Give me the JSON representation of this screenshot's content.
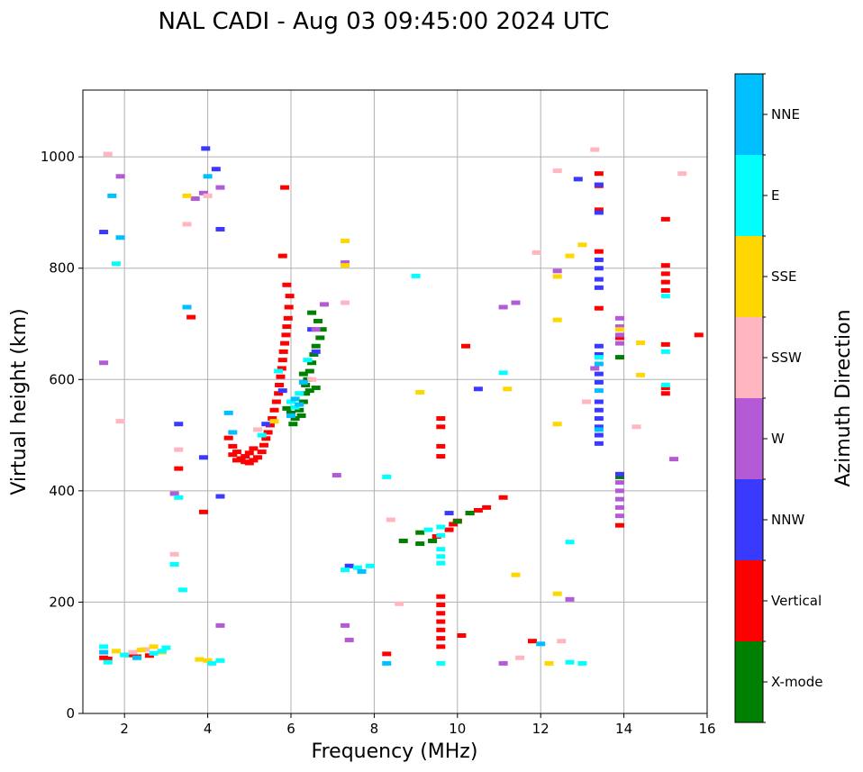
{
  "chart_data": {
    "type": "scatter",
    "title": "NAL CADI - Aug 03 09:45:00 2024 UTC",
    "xlabel": "Frequency (MHz)",
    "ylabel": "Virtual height (km)",
    "xlim": [
      1,
      16
    ],
    "ylim": [
      0,
      1120
    ],
    "xticks": [
      2,
      4,
      6,
      8,
      10,
      12,
      14,
      16
    ],
    "yticks": [
      0,
      200,
      400,
      600,
      800,
      1000
    ],
    "grid": true,
    "colorbar": {
      "title": "Azimuth Direction",
      "labels": [
        "X-mode",
        "Vertical",
        "NNW",
        "W",
        "SSW",
        "SSE",
        "E",
        "NNE"
      ],
      "colors": [
        "#008000",
        "#ff0000",
        "#3a3aff",
        "#b45ad6",
        "#ffb6c1",
        "#ffd700",
        "#00ffff",
        "#00bfff"
      ]
    },
    "series": [
      {
        "name": "Vertical",
        "color": "#ff0000",
        "points": [
          [
            1.5,
            100
          ],
          [
            1.6,
            98
          ],
          [
            2.1,
            105
          ],
          [
            2.3,
            102
          ],
          [
            2.6,
            104
          ],
          [
            3.6,
            712
          ],
          [
            3.3,
            440
          ],
          [
            3.9,
            362
          ],
          [
            4.5,
            495
          ],
          [
            4.6,
            480
          ],
          [
            4.7,
            470
          ],
          [
            4.8,
            458
          ],
          [
            4.9,
            452
          ],
          [
            5.0,
            450
          ],
          [
            5.1,
            455
          ],
          [
            5.2,
            460
          ],
          [
            5.3,
            470
          ],
          [
            5.35,
            482
          ],
          [
            5.4,
            494
          ],
          [
            5.45,
            505
          ],
          [
            5.5,
            518
          ],
          [
            5.55,
            530
          ],
          [
            5.6,
            545
          ],
          [
            5.65,
            560
          ],
          [
            5.7,
            575
          ],
          [
            5.72,
            590
          ],
          [
            5.75,
            605
          ],
          [
            5.78,
            620
          ],
          [
            5.8,
            635
          ],
          [
            5.82,
            650
          ],
          [
            5.85,
            665
          ],
          [
            5.88,
            680
          ],
          [
            5.9,
            695
          ],
          [
            5.93,
            710
          ],
          [
            5.95,
            730
          ],
          [
            5.97,
            750
          ],
          [
            5.9,
            770
          ],
          [
            5.8,
            822
          ],
          [
            5.85,
            945
          ],
          [
            4.6,
            465
          ],
          [
            4.7,
            455
          ],
          [
            4.9,
            462
          ],
          [
            5.0,
            468
          ],
          [
            5.1,
            476
          ],
          [
            9.6,
            120
          ],
          [
            9.6,
            135
          ],
          [
            9.6,
            150
          ],
          [
            9.6,
            165
          ],
          [
            9.6,
            180
          ],
          [
            9.6,
            195
          ],
          [
            9.6,
            210
          ],
          [
            9.6,
            462
          ],
          [
            9.6,
            480
          ],
          [
            9.6,
            515
          ],
          [
            9.6,
            530
          ],
          [
            9.5,
            318
          ],
          [
            9.8,
            330
          ],
          [
            9.9,
            340
          ],
          [
            10.0,
            346
          ],
          [
            10.3,
            360
          ],
          [
            10.5,
            365
          ],
          [
            10.7,
            370
          ],
          [
            10.2,
            660
          ],
          [
            10.1,
            140
          ],
          [
            11.1,
            388
          ],
          [
            11.8,
            130
          ],
          [
            13.4,
            970
          ],
          [
            13.4,
            948
          ],
          [
            13.4,
            905
          ],
          [
            13.4,
            830
          ],
          [
            13.4,
            728
          ],
          [
            13.9,
            675
          ],
          [
            13.9,
            338
          ],
          [
            15.0,
            888
          ],
          [
            15.0,
            805
          ],
          [
            15.0,
            790
          ],
          [
            15.0,
            775
          ],
          [
            15.0,
            760
          ],
          [
            15.0,
            663
          ],
          [
            15.0,
            585
          ],
          [
            15.0,
            575
          ],
          [
            15.8,
            680
          ],
          [
            8.3,
            107
          ]
        ]
      },
      {
        "name": "X-mode",
        "color": "#008000",
        "points": [
          [
            5.9,
            548
          ],
          [
            6.0,
            540
          ],
          [
            6.1,
            530
          ],
          [
            6.05,
            520
          ],
          [
            6.2,
            545
          ],
          [
            6.3,
            560
          ],
          [
            6.35,
            575
          ],
          [
            6.4,
            600
          ],
          [
            6.45,
            615
          ],
          [
            6.5,
            630
          ],
          [
            6.55,
            645
          ],
          [
            6.6,
            660
          ],
          [
            6.7,
            675
          ],
          [
            6.75,
            690
          ],
          [
            6.65,
            705
          ],
          [
            6.5,
            720
          ],
          [
            6.35,
            590
          ],
          [
            6.3,
            610
          ],
          [
            6.45,
            580
          ],
          [
            6.6,
            585
          ],
          [
            6.25,
            535
          ],
          [
            8.7,
            310
          ],
          [
            9.1,
            305
          ],
          [
            9.1,
            325
          ],
          [
            9.4,
            310
          ],
          [
            10.0,
            345
          ],
          [
            10.3,
            360
          ],
          [
            13.9,
            425
          ],
          [
            13.9,
            640
          ]
        ]
      },
      {
        "name": "NNW",
        "color": "#3a3aff",
        "points": [
          [
            1.5,
            865
          ],
          [
            3.3,
            520
          ],
          [
            3.9,
            460
          ],
          [
            3.95,
            1015
          ],
          [
            4.3,
            870
          ],
          [
            4.3,
            390
          ],
          [
            4.2,
            978
          ],
          [
            5.4,
            520
          ],
          [
            5.8,
            580
          ],
          [
            6.5,
            690
          ],
          [
            6.6,
            650
          ],
          [
            7.4,
            265
          ],
          [
            9.8,
            360
          ],
          [
            10.5,
            583
          ],
          [
            12.9,
            960
          ],
          [
            13.4,
            950
          ],
          [
            13.4,
            900
          ],
          [
            13.4,
            815
          ],
          [
            13.4,
            800
          ],
          [
            13.4,
            780
          ],
          [
            13.4,
            765
          ],
          [
            13.4,
            660
          ],
          [
            13.4,
            645
          ],
          [
            13.4,
            610
          ],
          [
            13.4,
            595
          ],
          [
            13.4,
            560
          ],
          [
            13.4,
            545
          ],
          [
            13.4,
            530
          ],
          [
            13.4,
            515
          ],
          [
            13.4,
            500
          ],
          [
            13.4,
            485
          ],
          [
            13.9,
            430
          ]
        ]
      },
      {
        "name": "W",
        "color": "#b45ad6",
        "points": [
          [
            1.5,
            630
          ],
          [
            1.9,
            965
          ],
          [
            3.2,
            395
          ],
          [
            3.7,
            925
          ],
          [
            3.9,
            935
          ],
          [
            4.3,
            158
          ],
          [
            4.3,
            945
          ],
          [
            6.6,
            690
          ],
          [
            6.8,
            735
          ],
          [
            7.3,
            810
          ],
          [
            7.3,
            158
          ],
          [
            7.4,
            132
          ],
          [
            7.1,
            428
          ],
          [
            11.1,
            730
          ],
          [
            11.4,
            738
          ],
          [
            11.1,
            90
          ],
          [
            12.4,
            795
          ],
          [
            12.7,
            205
          ],
          [
            13.3,
            620
          ],
          [
            13.9,
            710
          ],
          [
            13.9,
            695
          ],
          [
            13.9,
            680
          ],
          [
            13.9,
            665
          ],
          [
            13.9,
            415
          ],
          [
            13.9,
            400
          ],
          [
            13.9,
            385
          ],
          [
            13.9,
            370
          ],
          [
            13.9,
            355
          ],
          [
            15.2,
            457
          ]
        ]
      },
      {
        "name": "SSW",
        "color": "#ffb6c1",
        "points": [
          [
            1.6,
            1005
          ],
          [
            1.9,
            525
          ],
          [
            2.2,
            110
          ],
          [
            2.5,
            115
          ],
          [
            3.2,
            286
          ],
          [
            3.3,
            474
          ],
          [
            3.5,
            879
          ],
          [
            4.0,
            930
          ],
          [
            5.2,
            510
          ],
          [
            6.5,
            600
          ],
          [
            7.3,
            738
          ],
          [
            8.4,
            348
          ],
          [
            8.6,
            197
          ],
          [
            11.5,
            100
          ],
          [
            11.9,
            828
          ],
          [
            12.4,
            975
          ],
          [
            12.5,
            130
          ],
          [
            13.1,
            560
          ],
          [
            13.3,
            1013
          ],
          [
            14.3,
            515
          ],
          [
            15.4,
            970
          ]
        ]
      },
      {
        "name": "SSE",
        "color": "#ffd700",
        "points": [
          [
            1.8,
            112
          ],
          [
            2.4,
            114
          ],
          [
            2.7,
            120
          ],
          [
            2.9,
            110
          ],
          [
            3.5,
            930
          ],
          [
            4.0,
            95
          ],
          [
            3.8,
            97
          ],
          [
            5.6,
            525
          ],
          [
            7.3,
            849
          ],
          [
            7.3,
            805
          ],
          [
            9.1,
            577
          ],
          [
            11.2,
            583
          ],
          [
            11.4,
            249
          ],
          [
            12.2,
            90
          ],
          [
            12.4,
            785
          ],
          [
            12.4,
            707
          ],
          [
            12.4,
            520
          ],
          [
            12.4,
            215
          ],
          [
            12.7,
            822
          ],
          [
            13.0,
            842
          ],
          [
            14.4,
            666
          ],
          [
            14.4,
            608
          ],
          [
            13.9,
            690
          ]
        ]
      },
      {
        "name": "E",
        "color": "#00ffff",
        "points": [
          [
            1.5,
            120
          ],
          [
            1.6,
            92
          ],
          [
            1.8,
            808
          ],
          [
            2.0,
            105
          ],
          [
            2.7,
            108
          ],
          [
            2.9,
            112
          ],
          [
            3.0,
            118
          ],
          [
            3.3,
            388
          ],
          [
            3.2,
            268
          ],
          [
            3.4,
            222
          ],
          [
            4.1,
            90
          ],
          [
            4.3,
            95
          ],
          [
            5.3,
            500
          ],
          [
            5.7,
            615
          ],
          [
            6.0,
            560
          ],
          [
            6.1,
            550
          ],
          [
            6.2,
            575
          ],
          [
            6.4,
            635
          ],
          [
            7.3,
            258
          ],
          [
            7.6,
            262
          ],
          [
            7.9,
            265
          ],
          [
            8.3,
            425
          ],
          [
            9.0,
            786
          ],
          [
            9.3,
            330
          ],
          [
            9.6,
            295
          ],
          [
            9.6,
            282
          ],
          [
            9.6,
            270
          ],
          [
            9.6,
            320
          ],
          [
            9.6,
            335
          ],
          [
            9.6,
            90
          ],
          [
            11.1,
            612
          ],
          [
            12.7,
            308
          ],
          [
            12.7,
            92
          ],
          [
            13.0,
            90
          ],
          [
            15.0,
            650
          ],
          [
            15.0,
            750
          ],
          [
            15.0,
            590
          ],
          [
            13.4,
            640
          ]
        ]
      },
      {
        "name": "NNE",
        "color": "#00bfff",
        "points": [
          [
            1.5,
            110
          ],
          [
            1.7,
            930
          ],
          [
            1.9,
            855
          ],
          [
            2.3,
            100
          ],
          [
            3.5,
            730
          ],
          [
            4.0,
            965
          ],
          [
            4.5,
            540
          ],
          [
            4.6,
            505
          ],
          [
            6.0,
            535
          ],
          [
            6.1,
            565
          ],
          [
            6.2,
            555
          ],
          [
            6.3,
            595
          ],
          [
            7.7,
            255
          ],
          [
            8.3,
            90
          ],
          [
            12.0,
            125
          ],
          [
            13.4,
            628
          ],
          [
            13.4,
            580
          ],
          [
            13.4,
            510
          ]
        ]
      }
    ]
  }
}
